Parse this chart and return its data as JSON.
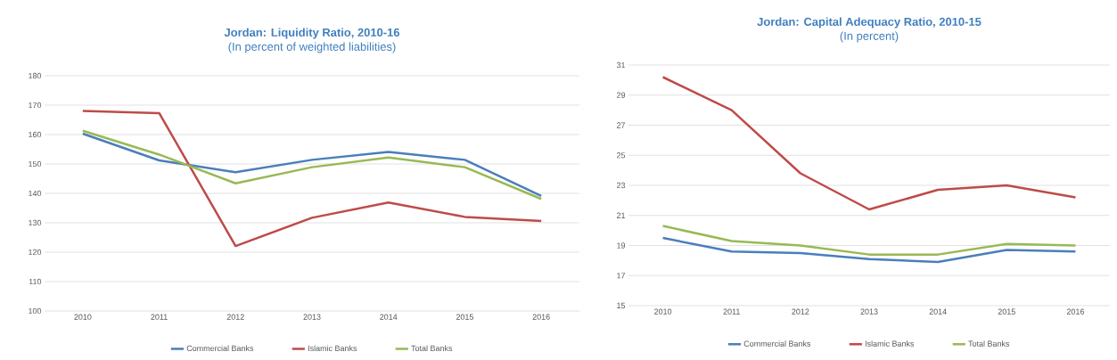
{
  "chart_data": [
    {
      "type": "line",
      "title": "Jordan: Liquidity Ratio, 2010-16",
      "subtitle": "(In percent of weighted liabilities)",
      "categories": [
        "2010",
        "2011",
        "2012",
        "2013",
        "2014",
        "2015",
        "2016"
      ],
      "series": [
        {
          "name": "Commercial Banks",
          "color": "#4a7ebb",
          "values": [
            160.3,
            151.2,
            147.2,
            151.4,
            154.1,
            151.4,
            139.1
          ]
        },
        {
          "name": "Islamic Banks",
          "color": "#be4b48",
          "values": [
            168.0,
            167.3,
            122.1,
            131.7,
            136.9,
            132.0,
            130.6
          ]
        },
        {
          "name": "Total Banks",
          "color": "#98b954",
          "values": [
            161.3,
            153.2,
            143.4,
            148.9,
            152.2,
            148.9,
            138.1
          ]
        }
      ],
      "ylim": [
        100,
        180
      ],
      "yticks": [
        100,
        110,
        120,
        130,
        140,
        150,
        160,
        170,
        180
      ],
      "grid": "y",
      "legend": "bottom"
    },
    {
      "type": "line",
      "title": "Jordan: Capital Adequacy Ratio, 2010-15",
      "subtitle": "(In percent)",
      "categories": [
        "2010",
        "2011",
        "2012",
        "2013",
        "2014",
        "2015",
        "2016"
      ],
      "series": [
        {
          "name": "Commercial Banks",
          "color": "#4a7ebb",
          "values": [
            19.5,
            18.6,
            18.5,
            18.1,
            17.9,
            18.7,
            18.6
          ]
        },
        {
          "name": "Islamic Banks",
          "color": "#be4b48",
          "values": [
            30.2,
            28.0,
            23.8,
            21.4,
            22.7,
            23.0,
            22.2
          ]
        },
        {
          "name": "Total Banks",
          "color": "#98b954",
          "values": [
            20.3,
            19.3,
            19.0,
            18.4,
            18.4,
            19.1,
            19.0
          ]
        }
      ],
      "ylim": [
        15,
        31
      ],
      "yticks": [
        15,
        17,
        19,
        21,
        23,
        25,
        27,
        29,
        31
      ],
      "grid": "y",
      "legend": "bottom"
    }
  ]
}
